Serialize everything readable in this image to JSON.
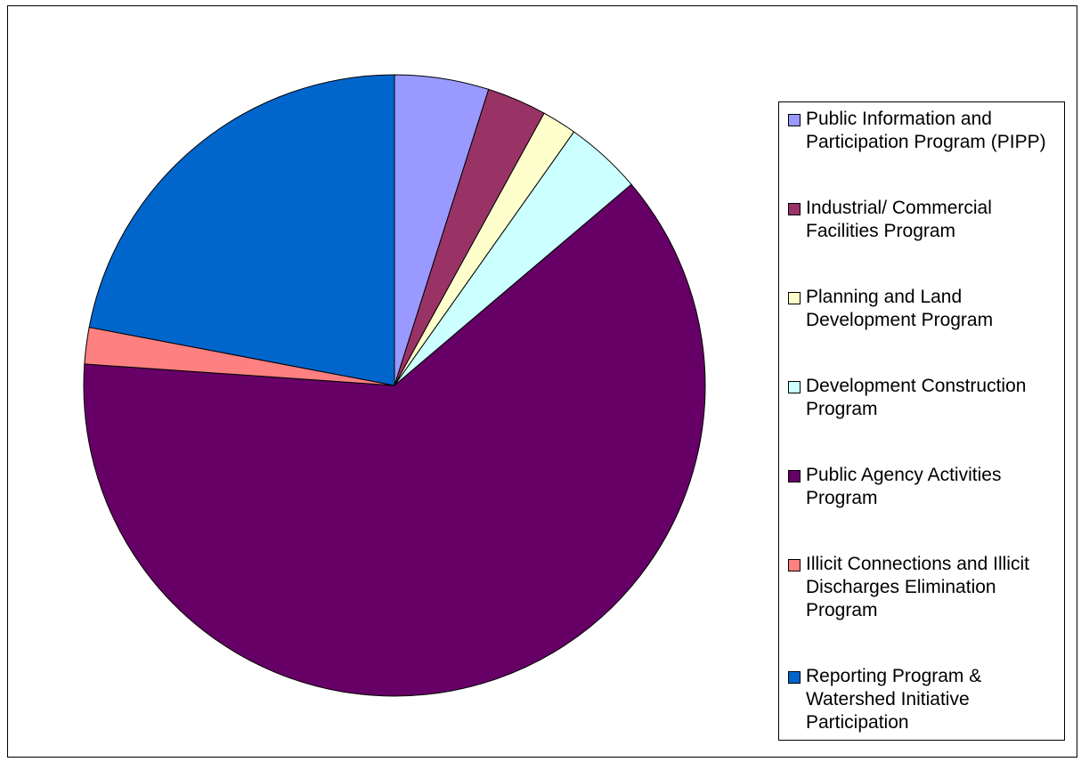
{
  "chart_data": {
    "type": "pie",
    "categories": [
      "Public Information and Participation Program (PIPP)",
      "Industrial/ Commercial Facilities Program",
      "Planning and Land Development Program",
      "Development Construction Program",
      "Public Agency Activities Program",
      "Illicit Connections and Illicit Discharges Elimination Program",
      "Reporting Program & Watershed Initiative Participation"
    ],
    "values": [
      4.9,
      3.1,
      1.8,
      4.0,
      62.3,
      1.9,
      22.0
    ],
    "colors": [
      "#9999ff",
      "#993366",
      "#ffffcc",
      "#ccffff",
      "#660066",
      "#ff8080",
      "#0066cc"
    ],
    "legend": "right"
  }
}
